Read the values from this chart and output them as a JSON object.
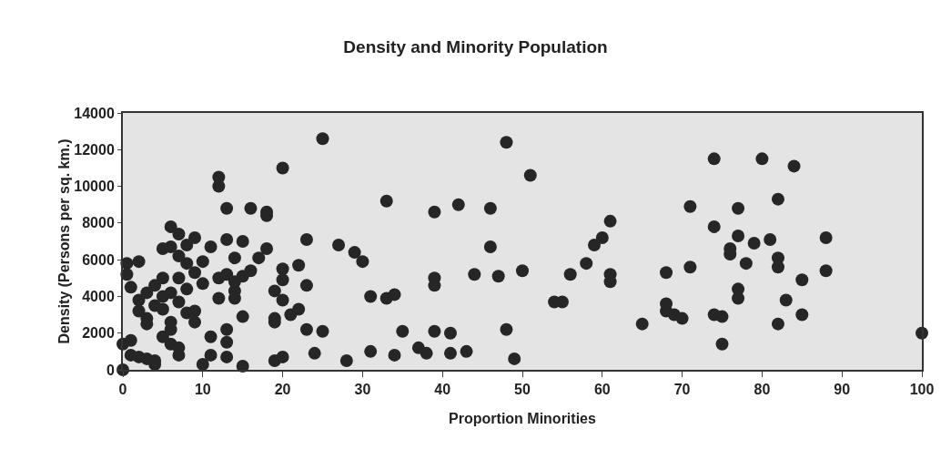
{
  "chart_data": {
    "type": "scatter",
    "title": "Density and Minority Population",
    "xlabel": "Proportion Minorities",
    "ylabel": "Density (Persons per sq. km.)",
    "xlim": [
      0,
      100
    ],
    "xticks": [
      0,
      10,
      20,
      30,
      40,
      50,
      60,
      70,
      80,
      90,
      100
    ],
    "ylim": [
      0,
      14000
    ],
    "yticks": [
      0,
      2000,
      4000,
      6000,
      8000,
      10000,
      12000,
      14000
    ],
    "grid": false,
    "legend": false,
    "marker": "circle",
    "x": [
      0,
      0,
      0.5,
      0.5,
      1,
      1,
      1,
      2,
      2,
      2,
      2,
      3,
      3,
      3,
      3,
      4,
      4,
      4,
      4,
      5,
      5,
      5,
      5,
      5,
      6,
      6,
      6,
      6,
      6,
      6,
      7,
      7,
      7,
      7,
      7,
      7,
      8,
      8,
      8,
      8,
      9,
      9,
      9,
      9,
      10,
      10,
      10,
      11,
      11,
      11,
      12,
      12,
      12,
      12,
      13,
      13,
      13,
      13,
      13,
      13,
      14,
      14,
      14,
      14,
      15,
      15,
      15,
      15,
      16,
      16,
      17,
      18,
      18,
      18,
      19,
      19,
      19,
      19,
      20,
      20,
      20,
      20,
      20,
      21,
      22,
      22,
      23,
      23,
      23,
      24,
      25,
      25,
      27,
      28,
      29,
      30,
      31,
      31,
      33,
      33,
      34,
      34,
      35,
      37,
      38,
      39,
      39,
      39,
      39,
      41,
      41,
      42,
      43,
      44,
      46,
      46,
      47,
      48,
      48,
      49,
      50,
      51,
      54,
      55,
      56,
      58,
      59,
      60,
      61,
      61,
      61,
      65,
      68,
      68,
      68,
      69,
      70,
      71,
      71,
      74,
      74,
      74,
      75,
      75,
      76,
      76,
      77,
      77,
      77,
      77,
      78,
      79,
      80,
      81,
      82,
      82,
      82,
      82,
      83,
      84,
      85,
      85,
      88,
      88,
      100
    ],
    "series": [
      {
        "color": "#262626",
        "values": [
          0,
          1400,
          5800,
          5200,
          4500,
          1600,
          800,
          5900,
          3800,
          3200,
          700,
          4200,
          2800,
          600,
          2500,
          4600,
          3500,
          500,
          300,
          5000,
          4000,
          3300,
          6600,
          1800,
          6700,
          4200,
          2600,
          1400,
          2200,
          7800,
          7400,
          6200,
          3700,
          1200,
          800,
          5000,
          5800,
          4400,
          3100,
          6800,
          7200,
          5300,
          3200,
          2600,
          5900,
          4700,
          300,
          6700,
          1800,
          800,
          10500,
          10000,
          5000,
          3900,
          8800,
          7100,
          5200,
          2200,
          1500,
          700,
          6100,
          4300,
          4800,
          3900,
          7000,
          5100,
          2900,
          200,
          8800,
          5400,
          6100,
          8600,
          8400,
          6600,
          4300,
          2800,
          2600,
          500,
          11000,
          5500,
          4900,
          3800,
          700,
          3000,
          5700,
          3300,
          7100,
          4600,
          2200,
          900,
          12600,
          2100,
          6800,
          500,
          6400,
          5900,
          1000,
          4000,
          9200,
          3900,
          4100,
          800,
          2100,
          1200,
          900,
          8600,
          5000,
          4600,
          2100,
          2000,
          900,
          9000,
          1000,
          5200,
          8800,
          6700,
          5100,
          12400,
          2200,
          600,
          5400,
          10600,
          3700,
          3700,
          5200,
          5800,
          6800,
          7200,
          8100,
          5200,
          4800,
          2500,
          5300,
          3600,
          3200,
          3000,
          2800,
          8900,
          5600,
          11500,
          7800,
          3000,
          2900,
          1400,
          6600,
          6300,
          8800,
          7300,
          4400,
          3900,
          5800,
          6900,
          11500,
          7100,
          9300,
          6100,
          5600,
          2500,
          3800,
          11100,
          4900,
          3000,
          7200,
          5400,
          2000
        ]
      }
    ]
  }
}
